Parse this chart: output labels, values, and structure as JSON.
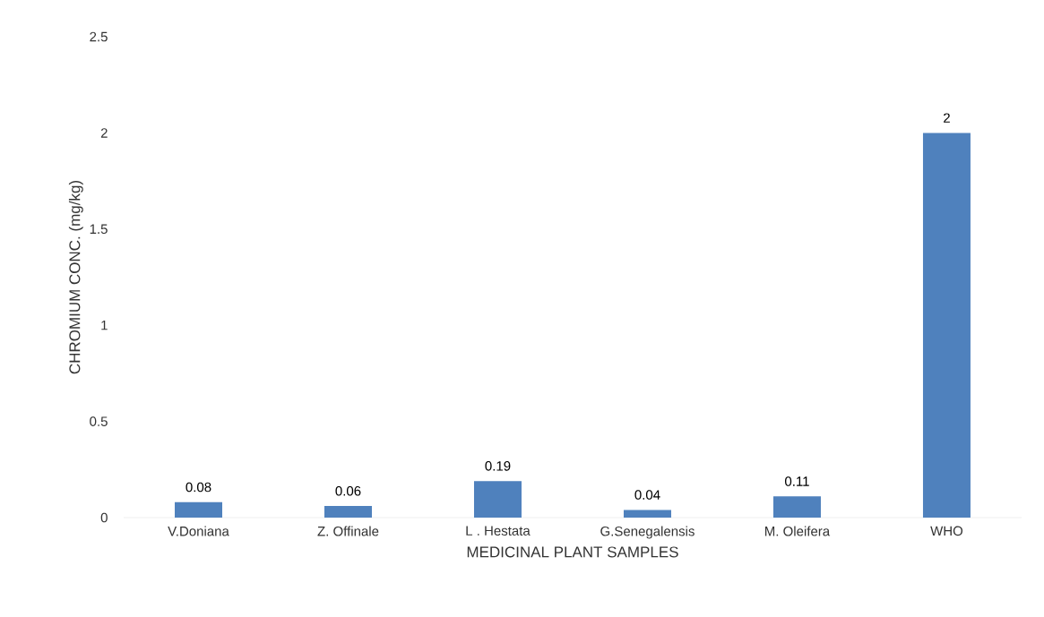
{
  "chart_data": {
    "type": "bar",
    "xlabel": "MEDICINAL PLANT SAMPLES",
    "ylabel": "CHROMIUM CONC. (mg/kg)",
    "categories": [
      "V.Doniana",
      "Z. Offinale",
      "L . Hestata",
      "G.Senegalensis",
      "M. Oleifera",
      "WHO"
    ],
    "values": [
      0.08,
      0.06,
      0.19,
      0.04,
      0.11,
      2
    ],
    "color": "#4f81bd",
    "ylim": [
      0,
      2.5
    ],
    "yticks": [
      0,
      0.5,
      1,
      1.5,
      2,
      2.5
    ],
    "data_labels": true
  }
}
